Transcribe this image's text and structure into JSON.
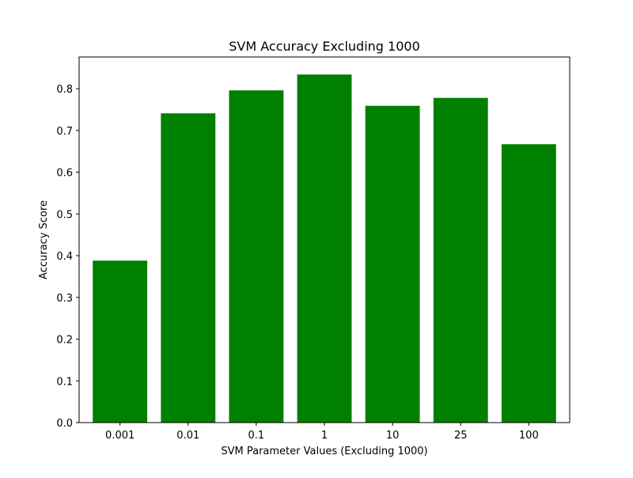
{
  "chart_data": {
    "type": "bar",
    "title": "SVM Accuracy Excluding 1000",
    "xlabel": "SVM Parameter Values (Excluding 1000)",
    "ylabel": "Accuracy Score",
    "categories": [
      "0.001",
      "0.01",
      "0.1",
      "1",
      "10",
      "25",
      "100"
    ],
    "values": [
      0.388,
      0.741,
      0.796,
      0.834,
      0.759,
      0.778,
      0.667
    ],
    "ylim": [
      0,
      0.876
    ],
    "yticks": [
      "0.0",
      "0.1",
      "0.2",
      "0.3",
      "0.4",
      "0.5",
      "0.6",
      "0.7",
      "0.8"
    ],
    "bar_color": "#008000",
    "grid": false,
    "legend": "none"
  }
}
